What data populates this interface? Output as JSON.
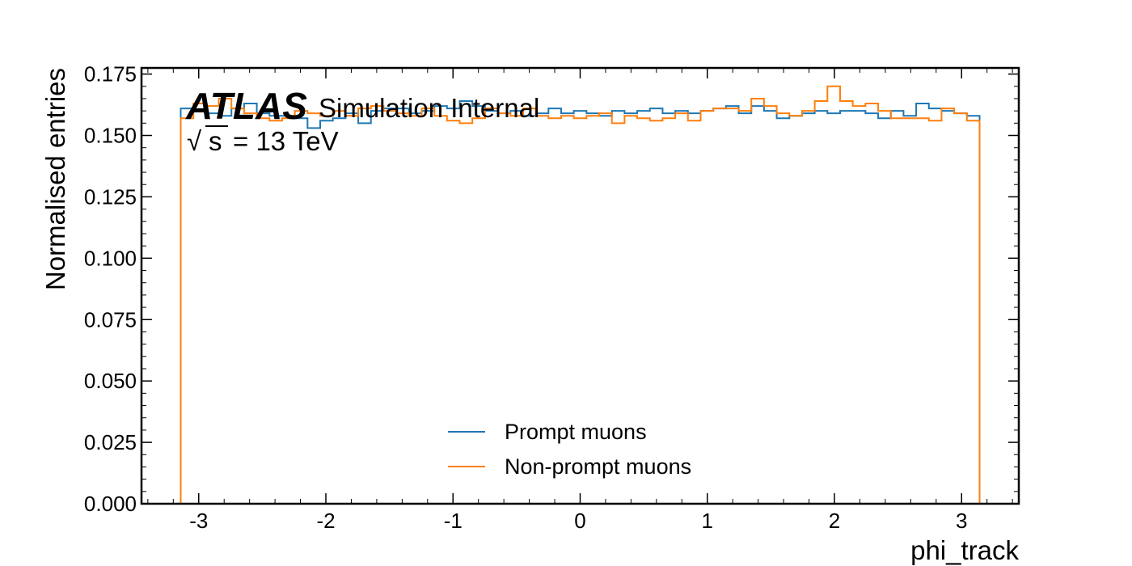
{
  "chart_data": {
    "type": "step-histogram",
    "xlabel": "phi_track",
    "ylabel": "Normalised entries",
    "xlim": [
      -3.45,
      3.45
    ],
    "ylim": [
      0,
      0.1775
    ],
    "x_ticks": [
      -3,
      -2,
      -1,
      0,
      1,
      2,
      3
    ],
    "x_tick_labels": [
      "-3",
      "-2",
      "-1",
      "0",
      "1",
      "2",
      "3"
    ],
    "y_ticks": [
      0.0,
      0.025,
      0.05,
      0.075,
      0.1,
      0.125,
      0.15,
      0.175
    ],
    "y_tick_labels": [
      "0.000",
      "0.025",
      "0.050",
      "0.075",
      "0.100",
      "0.125",
      "0.150",
      "0.175"
    ],
    "bin_range": [
      -3.1416,
      3.1416
    ],
    "n_bins": 63,
    "legend_position": "bottom-center",
    "series": [
      {
        "name": "Prompt muons",
        "color": "#1f77b4",
        "values": [
          0.161,
          0.16,
          0.159,
          0.158,
          0.161,
          0.163,
          0.159,
          0.158,
          0.158,
          0.157,
          0.153,
          0.156,
          0.157,
          0.159,
          0.155,
          0.16,
          0.161,
          0.161,
          0.159,
          0.16,
          0.162,
          0.161,
          0.164,
          0.162,
          0.16,
          0.159,
          0.16,
          0.158,
          0.159,
          0.161,
          0.159,
          0.16,
          0.159,
          0.158,
          0.16,
          0.159,
          0.16,
          0.161,
          0.159,
          0.16,
          0.159,
          0.16,
          0.161,
          0.162,
          0.159,
          0.162,
          0.16,
          0.157,
          0.158,
          0.159,
          0.16,
          0.159,
          0.16,
          0.16,
          0.159,
          0.157,
          0.16,
          0.158,
          0.163,
          0.161,
          0.16,
          0.159,
          0.158
        ]
      },
      {
        "name": "Non-prompt muons",
        "color": "#ff7f0e",
        "values": [
          0.157,
          0.163,
          0.162,
          0.165,
          0.161,
          0.159,
          0.157,
          0.156,
          0.157,
          0.16,
          0.159,
          0.158,
          0.16,
          0.158,
          0.161,
          0.162,
          0.16,
          0.159,
          0.158,
          0.161,
          0.158,
          0.156,
          0.155,
          0.157,
          0.161,
          0.159,
          0.158,
          0.161,
          0.158,
          0.157,
          0.158,
          0.157,
          0.158,
          0.159,
          0.155,
          0.158,
          0.157,
          0.156,
          0.157,
          0.159,
          0.156,
          0.16,
          0.161,
          0.161,
          0.16,
          0.165,
          0.162,
          0.159,
          0.158,
          0.16,
          0.164,
          0.17,
          0.164,
          0.162,
          0.163,
          0.16,
          0.157,
          0.157,
          0.157,
          0.156,
          0.161,
          0.159,
          0.156
        ]
      }
    ]
  },
  "atlas_label": {
    "experiment": "ATLAS",
    "status": "Simulation Internal",
    "sqrt_symbol": "√",
    "energy_s": "s",
    "energy_text": "= 13 TeV"
  }
}
